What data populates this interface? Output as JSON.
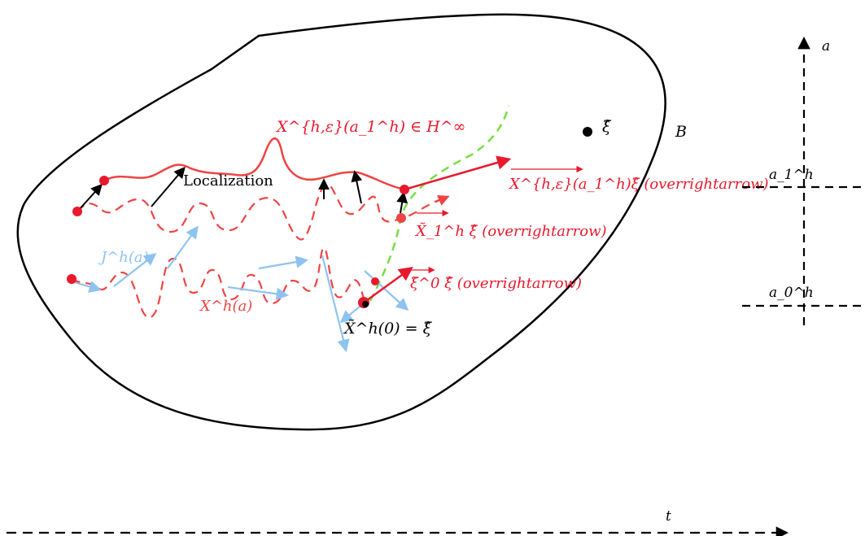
{
  "colors": {
    "background": "#ffffff",
    "region_outline": "#000000",
    "refined_path": "#ee4444",
    "red_arrow": "#e8192c",
    "light_blue": "#8ec3f0",
    "green_dashed": "#77dd44",
    "black": "#000000"
  },
  "labels": {
    "refined_path": "X^{h,ε}(a_1^h) ∈ H^∞",
    "localization": "Localization",
    "tangent_refined": "X^{h,ε}(a_1^h)ξ̂ (overrightarrow)",
    "tangent_x1": "X̃_1^h ξ̂ (overrightarrow)",
    "jacobian": "J^h(a)",
    "path_family": "X^h(a)",
    "tangent_xi0": "ξ̃^0 ξ̂ (overrightarrow)",
    "start_point": "X̃^h(0) = ξ̂",
    "xi_hat": "ξ̂",
    "region": "B",
    "axis_a": "a",
    "tick_a1": "a_1^h",
    "tick_a0": "a_0^h",
    "axis_t": "t"
  }
}
